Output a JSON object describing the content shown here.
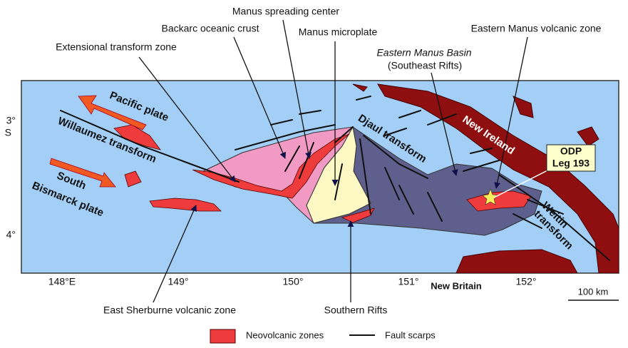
{
  "callouts": {
    "manus_spreading_center": "Manus spreading center",
    "backarc_oceanic_crust": "Backarc oceanic crust",
    "manus_microplate": "Manus microplate",
    "eastern_manus_volcanic_zone": "Eastern Manus volcanic zone",
    "extensional_transform_zone": "Extensional transform zone",
    "eastern_manus_basin": [
      "Eastern Manus Basin",
      "(Southeast Rifts)"
    ],
    "east_sherburne_volcanic_zone": "East Sherburne volcanic zone",
    "southern_rifts": "Southern Rifts"
  },
  "map": {
    "latitude_labels": [
      "3°",
      "S",
      "4°"
    ],
    "longitude_labels": [
      "148°E",
      "149°",
      "150°",
      "151°",
      "152°"
    ],
    "features": {
      "pacific_plate": "Pacific plate",
      "willaumez_transform": "Willaumez transform",
      "south_bismarck_plate": [
        "South",
        "Bismarck plate"
      ],
      "djaul_transform": "Djaul transform",
      "new_ireland": "New Ireland",
      "new_britain": "New Britain",
      "weitin_transform": [
        "Weitin",
        "transform"
      ],
      "odp_site": [
        "ODP",
        "Leg 193"
      ]
    }
  },
  "scale_bar": "100 km",
  "legend": [
    {
      "label": "Neovolcanic zones"
    },
    {
      "label": "Fault scarps"
    }
  ]
}
